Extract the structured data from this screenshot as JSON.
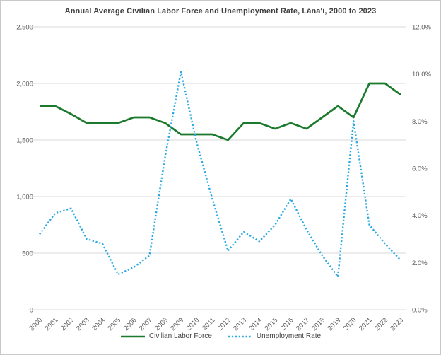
{
  "title": "Annual Average Civilian Labor Force and Unemployment Rate, Lāna'i, 2000 to 2023",
  "colors": {
    "labor_force_line": "#1b7a2e",
    "unemployment_line": "#29a9e1",
    "gridline": "#d9d9d9",
    "axis_text": "#595959",
    "title_text": "#3f3f3f",
    "background": "#ffffff",
    "border": "#c9c9c9"
  },
  "chart_data": {
    "type": "line",
    "title": "Annual Average Civilian Labor Force and Unemployment Rate, Lāna'i, 2000 to 2023",
    "categories": [
      "2000",
      "2001",
      "2002",
      "2003",
      "2004",
      "2005",
      "2006",
      "2007",
      "2008",
      "2009",
      "2010",
      "2011",
      "2012",
      "2013",
      "2014",
      "2015",
      "2016",
      "2017",
      "2018",
      "2019",
      "2020",
      "2021",
      "2022",
      "2023"
    ],
    "series": [
      {
        "name": "Civilian Labor Force",
        "axis": "left",
        "style": "solid",
        "color": "#1b7a2e",
        "values": [
          1800,
          1800,
          1730,
          1650,
          1650,
          1650,
          1700,
          1700,
          1650,
          1550,
          1550,
          1550,
          1500,
          1650,
          1650,
          1600,
          1650,
          1600,
          1700,
          1800,
          1700,
          2000,
          2000,
          1900
        ]
      },
      {
        "name": "Unemployment Rate",
        "axis": "right",
        "style": "dotted",
        "color": "#29a9e1",
        "values": [
          3.2,
          4.1,
          4.3,
          3.0,
          2.8,
          1.5,
          1.8,
          2.3,
          6.5,
          10.1,
          7.1,
          4.7,
          2.5,
          3.3,
          2.9,
          3.6,
          4.7,
          3.4,
          2.3,
          1.4,
          8.0,
          3.6,
          2.8,
          2.1
        ]
      }
    ],
    "left_axis": {
      "min": 0,
      "max": 2500,
      "step": 500,
      "tick_labels": [
        "0",
        "500",
        "1,000",
        "1,500",
        "2,000",
        "2,500"
      ]
    },
    "right_axis": {
      "min": 0,
      "max": 12,
      "step": 2,
      "tick_labels": [
        "0.0%",
        "2.0%",
        "4.0%",
        "6.0%",
        "8.0%",
        "10.0%",
        "12.0%"
      ]
    },
    "grid": true,
    "legend_position": "bottom",
    "x_label_rotation_deg": -45
  },
  "legend": {
    "items": [
      {
        "label": "Civilian Labor Force"
      },
      {
        "label": "Unemployment Rate"
      }
    ]
  }
}
